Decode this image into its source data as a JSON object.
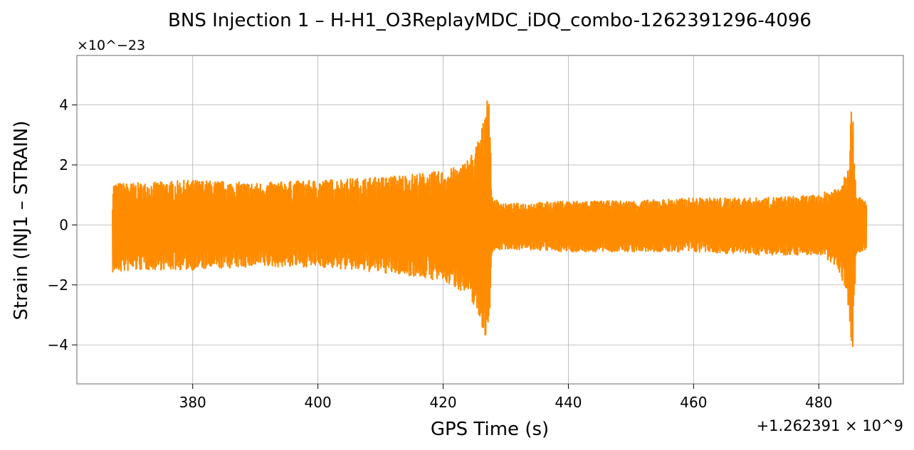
{
  "chart_data": {
    "type": "line",
    "title": "BNS Injection 1 – H-H1_O3ReplayMDC_iDQ_combo-1262391296-4096",
    "xlabel": "GPS Time (s)",
    "ylabel": "Strain (INJ1 – STRAIN)",
    "x_offset_label": "+1.262391 × 10^9",
    "y_scale_label": "×10^−23",
    "xlim": [
      361.5,
      493.5
    ],
    "ylim": [
      -5.3,
      5.65
    ],
    "x_ticks": [
      380,
      400,
      420,
      440,
      460,
      480
    ],
    "x_tick_labels": [
      "380",
      "400",
      "420",
      "440",
      "460",
      "480"
    ],
    "y_ticks": [
      -4,
      -2,
      0,
      2,
      4
    ],
    "y_tick_labels": [
      "−4",
      "−2",
      "0",
      "2",
      "4"
    ],
    "grid": true,
    "series": [
      {
        "color": "#ff8c00",
        "x_range": [
          367.2,
          487.6
        ],
        "envelope": {
          "x": [
            367.2,
            372.0,
            380.0,
            390.0,
            400.0,
            410.0,
            415.0,
            420.0,
            423.0,
            425.0,
            426.5,
            427.2,
            427.8,
            430.0,
            440.0,
            450.0,
            460.0,
            470.0,
            480.0,
            483.0,
            484.5,
            485.3,
            486.0,
            487.6
          ],
          "upper": [
            1.4,
            1.4,
            1.5,
            1.4,
            1.5,
            1.6,
            1.7,
            1.8,
            2.0,
            2.5,
            3.5,
            5.2,
            0.9,
            0.7,
            0.8,
            0.8,
            0.9,
            0.9,
            1.0,
            1.3,
            1.9,
            4.2,
            1.0,
            0.8
          ],
          "lower": [
            -1.6,
            -1.5,
            -1.5,
            -1.4,
            -1.4,
            -1.6,
            -1.7,
            -1.9,
            -2.2,
            -2.7,
            -3.6,
            -4.1,
            -0.9,
            -0.8,
            -0.9,
            -0.9,
            -0.9,
            -1.0,
            -1.0,
            -1.4,
            -2.3,
            -4.8,
            -1.0,
            -0.9
          ]
        }
      }
    ]
  }
}
